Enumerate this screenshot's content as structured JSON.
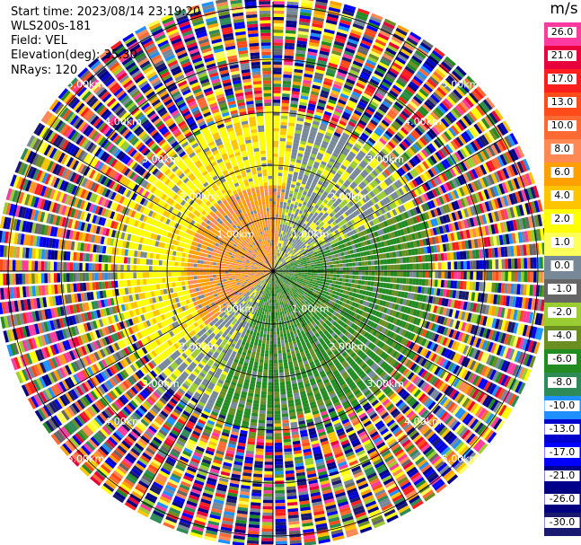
{
  "header": {
    "start_time": "Start time: 2023/08/14 23:19:20",
    "instrument": "WLS200s-181",
    "field": "Field: VEL",
    "elevation": "Elevation(deg): 35.30",
    "nrays": "NRays: 120"
  },
  "chart_data": {
    "type": "heatmap",
    "subtype": "radar-ppi",
    "field": "VEL",
    "units": "m/s",
    "n_rays": 120,
    "range_rings_km": [
      1.0,
      2.0,
      3.0,
      4.0,
      5.0
    ],
    "ring_label_text": "km",
    "colorbar_label": "m/s",
    "colorbar_ticks": [
      "26.0",
      "21.0",
      "17.0",
      "13.0",
      "10.0",
      "8.0",
      "6.0",
      "4.0",
      "2.0",
      "1.0",
      "0.0",
      "-1.0",
      "-2.0",
      "-4.0",
      "-6.0",
      "-8.0",
      "-10.0",
      "-13.0",
      "-17.0",
      "-21.0",
      "-26.0",
      "-30.0"
    ],
    "colorbar_colors": [
      "#ff3aa0",
      "#e8003c",
      "#ff1e1e",
      "#ff4a1a",
      "#ff6a33",
      "#ff8855",
      "#ff9f00",
      "#ffc400",
      "#ffff00",
      "#ffff5a",
      "#778899",
      "#666666",
      "#9acd32",
      "#6b8e23",
      "#228b22",
      "#2e8b57",
      "#1e90ff",
      "#0000cd",
      "#0000ff",
      "#00008b",
      "#000080",
      "#191970"
    ],
    "pattern": {
      "near_field_range_km": 3.0,
      "positive_toward_azimuth_deg": 300,
      "negative_toward_azimuth_deg": 135,
      "far_field": "noise"
    },
    "grid": true
  }
}
